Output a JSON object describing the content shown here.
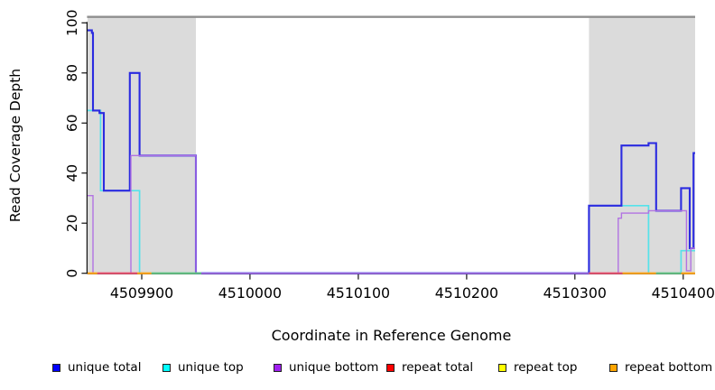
{
  "legend": {
    "items": [
      {
        "label": "unique total",
        "color": "#0000FF"
      },
      {
        "label": "unique top",
        "color": "#00FFFF"
      },
      {
        "label": "unique bottom",
        "color": "#A020F0"
      },
      {
        "label": "repeat total",
        "color": "#FF0000"
      },
      {
        "label": "repeat top",
        "color": "#FFFF00"
      },
      {
        "label": "repeat bottom",
        "color": "#FFA500"
      }
    ]
  },
  "chart_data": {
    "type": "line",
    "title": "",
    "xlabel": "Coordinate in Reference Genome",
    "ylabel": "Read Coverage Depth",
    "xlim": [
      4509850,
      4510411
    ],
    "ylim": [
      0,
      100
    ],
    "x_ticks": [
      4509900,
      4510000,
      4510100,
      4510200,
      4510300,
      4510400
    ],
    "x_tick_labels": [
      "4509900",
      "4510000",
      "4510100",
      "4510200",
      "4510300",
      "4510400"
    ],
    "y_ticks": [
      0,
      20,
      40,
      60,
      80,
      100
    ],
    "y_tick_labels": [
      "0",
      "20",
      "40",
      "60",
      "80",
      "100"
    ],
    "grid": false,
    "legend_position": "bottom",
    "repeat_regions": [
      [
        4509850,
        4509950
      ],
      [
        4510313,
        4510411
      ]
    ],
    "colors": {
      "repeat_region_fill": "#DBDBDB",
      "top_border": "#8F8F8F",
      "axis": "#111111"
    },
    "draw_order": [
      "repeat total",
      "repeat top",
      "repeat bottom",
      "unique top",
      "unique total",
      "unique bottom"
    ],
    "series": [
      {
        "name": "unique total",
        "color": "#2B2BE0",
        "width": 2.1,
        "steps": [
          [
            4509850,
            97
          ],
          [
            4509854,
            96
          ],
          [
            4509855,
            65
          ],
          [
            4509861,
            64
          ],
          [
            4509865,
            33
          ],
          [
            4509889,
            80
          ],
          [
            4509898,
            47
          ],
          [
            4509950,
            0
          ],
          [
            4510313,
            27
          ],
          [
            4510343,
            51
          ],
          [
            4510368,
            52
          ],
          [
            4510375,
            25
          ],
          [
            4510398,
            34
          ],
          [
            4510406,
            10
          ],
          [
            4510409.5,
            48
          ]
        ],
        "end": 4510411
      },
      {
        "name": "unique top",
        "color": "#55E2EA",
        "width": 1.7,
        "steps": [
          [
            4509850,
            65
          ],
          [
            4509862,
            33
          ],
          [
            4509898,
            0
          ],
          [
            4510313,
            27
          ],
          [
            4510368,
            0
          ],
          [
            4510398,
            9
          ]
        ],
        "end": 4510411
      },
      {
        "name": "unique bottom",
        "color": "#B273E2",
        "width": 1.4,
        "steps": [
          [
            4509850,
            31
          ],
          [
            4509855,
            0
          ],
          [
            4509890,
            47
          ],
          [
            4509950,
            0
          ],
          [
            4510340,
            22
          ],
          [
            4510343,
            24
          ],
          [
            4510368,
            25
          ],
          [
            4510403,
            1
          ],
          [
            4510407,
            10
          ]
        ],
        "end": 4510411
      },
      {
        "name": "repeat total",
        "color": "#E8506E",
        "width": 1.5,
        "steps": [
          [
            4509850,
            0
          ]
        ],
        "end": 4510411
      },
      {
        "name": "repeat top",
        "color": "#F5F056",
        "width": 1.5,
        "steps": [
          [
            4509850,
            0
          ]
        ],
        "end": 4510411
      },
      {
        "name": "repeat bottom",
        "color": "#FFA519",
        "width": 1.5,
        "steps": [
          [
            4509850,
            0
          ]
        ],
        "end": 4510411
      }
    ],
    "zero_segments": [
      {
        "color": "#FFA519",
        "from": 4509850,
        "to": 4509859
      },
      {
        "color": "#E8506E",
        "from": 4509859,
        "to": 4509896
      },
      {
        "color": "#FFA519",
        "from": 4509896,
        "to": 4509909
      },
      {
        "color": "#63C383",
        "from": 4509909,
        "to": 4509955
      },
      {
        "color": "#E8506E",
        "from": 4510313,
        "to": 4510344
      },
      {
        "color": "#FFA519",
        "from": 4510344,
        "to": 4510375
      },
      {
        "color": "#63C383",
        "from": 4510375,
        "to": 4510398
      },
      {
        "color": "#FFA519",
        "from": 4510398,
        "to": 4510411
      }
    ]
  }
}
